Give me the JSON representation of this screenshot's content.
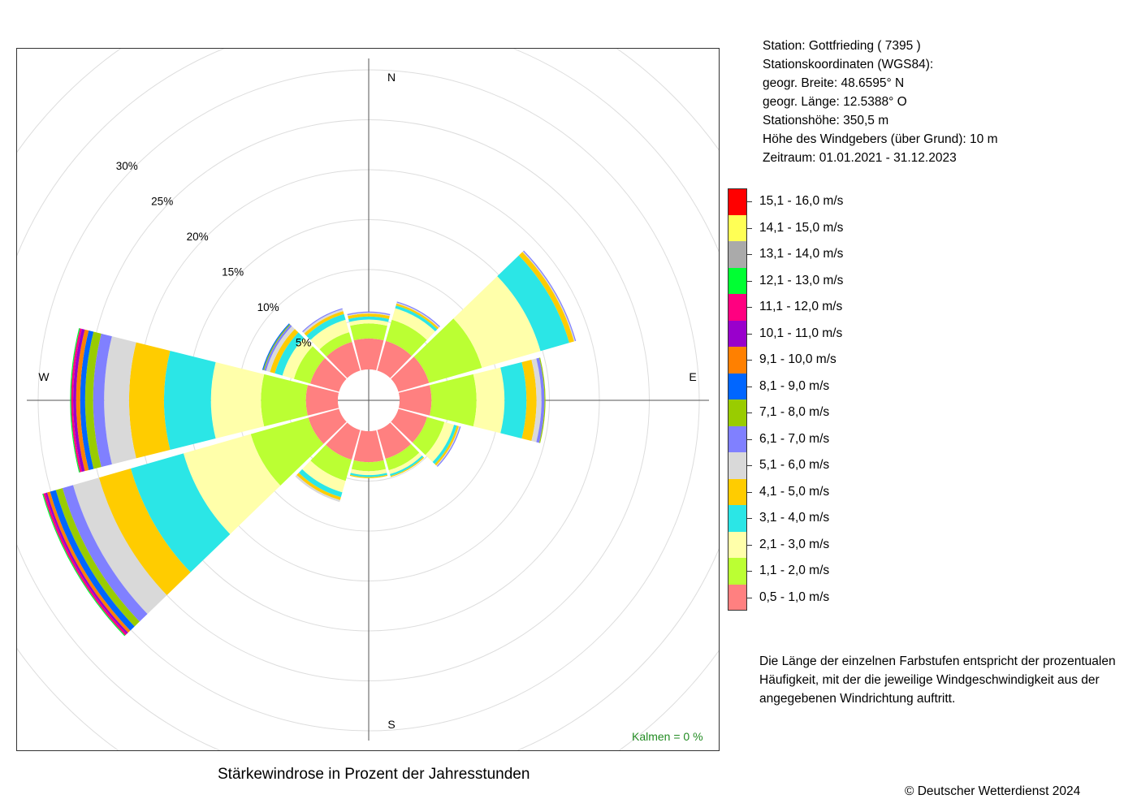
{
  "station": {
    "line1": "Station:  Gottfrieding  ( 7395 )",
    "line2": "Stationskoordinaten (WGS84):",
    "line3": "geogr. Breite: 48.6595° N",
    "line4": "geogr. Länge: 12.5388° O",
    "line5": "Stationshöhe: 350,5 m",
    "line6": "Höhe des Windgebers (über Grund): 10 m",
    "line7": "Zeitraum: 01.01.2021 - 31.12.2023"
  },
  "note": "Die Länge der einzelnen Farbstufen entspricht der prozentualen Häufigkeit, mit der die jeweilige Windgeschwindigkeit aus der angegebenen Windrichtung auftritt.",
  "caption": "Stärkewindrose in Prozent der Jahresstunden",
  "copyright": "© Deutscher Wetterdienst  2024",
  "calm": "Kalmen  =  0 %",
  "chart_data": {
    "type": "wind-rose",
    "title": "Stärkewindrose in Prozent der Jahresstunden",
    "units": "%",
    "radial_ticks": [
      "5%",
      "10%",
      "15%",
      "20%",
      "25%",
      "30%"
    ],
    "radial_tick_values": [
      5,
      10,
      15,
      20,
      25,
      30
    ],
    "compass_labels": {
      "N": "N",
      "E": "E",
      "S": "S",
      "W": "W"
    },
    "calm_percent": 0,
    "speed_classes": [
      {
        "label": "0,5 - 1,0 m/s",
        "color": "#ff8080"
      },
      {
        "label": "1,1 - 2,0 m/s",
        "color": "#bbff33"
      },
      {
        "label": "2,1 - 3,0 m/s",
        "color": "#ffffaa"
      },
      {
        "label": "3,1 - 4,0 m/s",
        "color": "#2be6e6"
      },
      {
        "label": "4,1 - 5,0 m/s",
        "color": "#ffcc00"
      },
      {
        "label": "5,1 - 6,0 m/s",
        "color": "#d9d9d9"
      },
      {
        "label": "6,1 - 7,0 m/s",
        "color": "#8080ff"
      },
      {
        "label": "7,1 - 8,0 m/s",
        "color": "#99cc00"
      },
      {
        "label": "8,1 - 9,0 m/s",
        "color": "#0066ff"
      },
      {
        "label": "9,1 - 10,0 m/s",
        "color": "#ff8000"
      },
      {
        "label": "10,1 - 11,0 m/s",
        "color": "#9900cc"
      },
      {
        "label": "11,1 - 12,0 m/s",
        "color": "#ff0080"
      },
      {
        "label": "12,1 - 13,0 m/s",
        "color": "#00ff33"
      },
      {
        "label": "13,1 - 14,0 m/s",
        "color": "#aaaaaa"
      },
      {
        "label": "14,1 - 15,0 m/s",
        "color": "#ffff55"
      },
      {
        "label": "15,1 - 16,0 m/s",
        "color": "#ff0000"
      }
    ],
    "directions": [
      {
        "dir": 0,
        "values": [
          3.1,
          1.5,
          0.4,
          0.3,
          0.3,
          0.1,
          0.1
        ]
      },
      {
        "dir": 30,
        "values": [
          3.1,
          2.2,
          1.2,
          0.3,
          0.2,
          0.1,
          0.1
        ]
      },
      {
        "dir": 60,
        "values": [
          3.2,
          5.5,
          6.1,
          3.0,
          0.5,
          0.1,
          0.1
        ]
      },
      {
        "dir": 90,
        "values": [
          3.2,
          4.5,
          2.8,
          2.2,
          1.0,
          0.5,
          0.3,
          0.1
        ]
      },
      {
        "dir": 120,
        "values": [
          3.0,
          1.8,
          1.0,
          0.3,
          0.2,
          0.1,
          0.1
        ]
      },
      {
        "dir": 150,
        "values": [
          3.0,
          1.2,
          0.4,
          0.2,
          0.1
        ]
      },
      {
        "dir": 180,
        "values": [
          3.1,
          0.9,
          0.4,
          0.2,
          0.1
        ]
      },
      {
        "dir": 210,
        "values": [
          3.1,
          2.2,
          1.2,
          0.5,
          0.3,
          0.2
        ]
      },
      {
        "dir": 240,
        "values": [
          3.2,
          6.0,
          7.0,
          5.5,
          3.3,
          2.7,
          1.1,
          0.7,
          0.6,
          0.3,
          0.2,
          0.2,
          0.1
        ]
      },
      {
        "dir": 270,
        "values": [
          3.2,
          4.5,
          5.0,
          4.7,
          3.5,
          2.5,
          1.1,
          0.8,
          0.5,
          0.4,
          0.3,
          0.2,
          0.1
        ]
      },
      {
        "dir": 300,
        "values": [
          3.0,
          1.7,
          1.2,
          0.8,
          0.5,
          0.4,
          0.2,
          0.1,
          0.1
        ]
      },
      {
        "dir": 330,
        "values": [
          3.0,
          1.0,
          1.3,
          0.6,
          0.3,
          0.2,
          0.1
        ]
      }
    ]
  }
}
